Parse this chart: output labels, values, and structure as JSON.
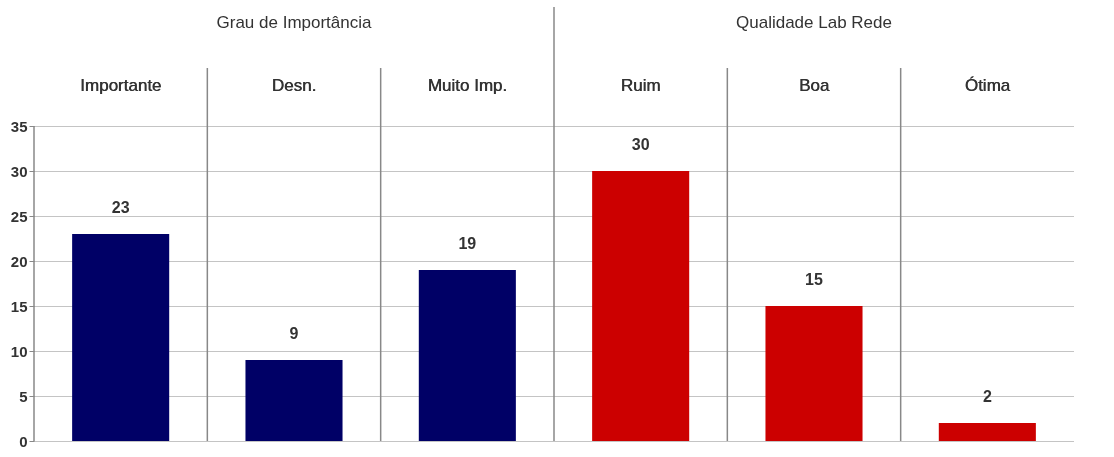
{
  "chart_data": {
    "type": "bar",
    "categories": [
      "Importante",
      "Desn.",
      "Muito Imp.",
      "Ruim",
      "Boa",
      "Ótima"
    ],
    "values": [
      23,
      9,
      19,
      30,
      15,
      2
    ],
    "colors": [
      "#000066",
      "#000066",
      "#000066",
      "#cc0000",
      "#cc0000",
      "#cc0000"
    ],
    "annotations": [
      "Grau de Importância",
      "Qualidade Lab Rede"
    ],
    "ylim": [
      0,
      35
    ],
    "yticks": [
      0,
      5,
      10,
      15,
      20,
      25,
      30,
      35
    ],
    "grid": "y",
    "data_labels": true
  }
}
